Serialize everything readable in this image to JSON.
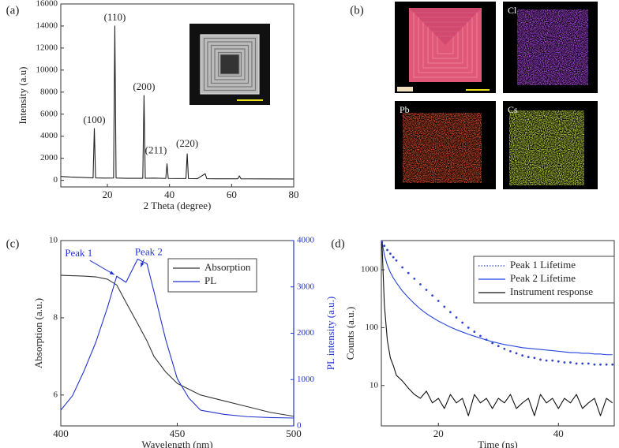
{
  "chart_data": [
    {
      "type": "line",
      "title": "(a)",
      "xlabel": "2 Theta (degree)",
      "ylabel": "Intensity (a.u)",
      "x": [
        5,
        8,
        12,
        15.4,
        15.8,
        16.2,
        19,
        22,
        22.4,
        22.8,
        26,
        31.4,
        31.8,
        32.2,
        35,
        38.8,
        39.2,
        39.6,
        43,
        45.3,
        45.7,
        46.1,
        49,
        51.5,
        52,
        55,
        62,
        62.5,
        63,
        70,
        80
      ],
      "series": [
        {
          "name": "XRD",
          "color": "#222222",
          "values": [
            350,
            300,
            260,
            220,
            4700,
            220,
            200,
            210,
            14000,
            210,
            180,
            180,
            7700,
            180,
            200,
            170,
            1500,
            170,
            160,
            160,
            2400,
            160,
            150,
            600,
            150,
            140,
            140,
            400,
            140,
            130,
            120
          ]
        }
      ],
      "annotations": [
        {
          "text": "(100)",
          "x": 15.8
        },
        {
          "text": "(110)",
          "x": 22.4
        },
        {
          "text": "(200)",
          "x": 31.8
        },
        {
          "text": "(211)",
          "x": 39.2
        },
        {
          "text": "(220)",
          "x": 45.7
        }
      ],
      "xlim": [
        5,
        80
      ],
      "xticks": [
        20,
        40,
        60,
        80
      ],
      "ylim": [
        -600,
        16000
      ],
      "yticks": [
        0,
        2000,
        4000,
        6000,
        8000,
        10000,
        12000,
        14000,
        16000
      ]
    },
    {
      "type": "image",
      "title": "(b)",
      "maps": [
        {
          "label": "Cl",
          "color": "#b84cf0"
        },
        {
          "label": "Pb",
          "color": "#e0502c"
        },
        {
          "label": "Cs",
          "color": "#c8e040"
        }
      ]
    },
    {
      "type": "line",
      "title": "(c)",
      "xlabel": "Wavelength (nm)",
      "ylabel": "Absorption (a.u.)",
      "y2label": "PL intensity (a.u.)",
      "x": [
        400,
        405,
        410,
        415,
        420,
        424,
        428,
        433,
        437,
        440,
        445,
        450,
        455,
        460,
        470,
        480,
        490,
        500
      ],
      "series": [
        {
          "name": "Absorption",
          "color": "#333333",
          "values": [
            9.1,
            9.09,
            9.08,
            9.06,
            9.0,
            8.85,
            8.4,
            7.85,
            7.4,
            7.0,
            6.6,
            6.3,
            6.15,
            6.0,
            5.85,
            5.7,
            5.55,
            5.45
          ]
        },
        {
          "name": "PL",
          "color": "#2233cc",
          "axis": "y2",
          "values": [
            340,
            650,
            1190,
            1800,
            2550,
            3230,
            3100,
            3600,
            3500,
            2900,
            1870,
            1020,
            600,
            340,
            250,
            200,
            180,
            170
          ]
        }
      ],
      "annotations": [
        {
          "text": "Peak 1",
          "x": 424
        },
        {
          "text": "Peak 2",
          "x": 433
        }
      ],
      "xlim": [
        400,
        500
      ],
      "xticks": [
        400,
        450,
        500
      ],
      "ylim": [
        5.2,
        10
      ],
      "yticks": [
        6,
        8,
        10
      ],
      "y2lim": [
        0,
        4000
      ],
      "y2ticks": [
        0,
        1000,
        2000,
        3000,
        4000
      ],
      "legend": "upper right"
    },
    {
      "type": "line",
      "title": "(d)",
      "xlabel": "Time (ns)",
      "ylabel": "Counts (a.u.)",
      "log_y": true,
      "x": [
        10.6,
        11,
        11.5,
        12,
        12.5,
        13,
        14,
        15,
        16,
        17,
        18,
        19,
        20,
        21,
        22,
        23,
        24,
        25,
        26,
        27,
        28,
        29,
        30,
        31,
        32,
        33,
        34,
        35,
        36,
        37,
        38,
        39,
        40,
        41,
        42,
        43,
        44,
        45,
        46,
        47,
        48,
        49
      ],
      "series": [
        {
          "name": "Peak 1 Lifetime",
          "color": "#3344cc",
          "line_style": "dotted",
          "values": [
            3000,
            2600,
            2200,
            1900,
            1650,
            1450,
            1100,
            880,
            700,
            560,
            450,
            360,
            290,
            230,
            185,
            150,
            122,
            100,
            85,
            72,
            62,
            54,
            48,
            43,
            39,
            36,
            33,
            31,
            30,
            28,
            27,
            27,
            26,
            25,
            25,
            24,
            24,
            24,
            23,
            23,
            23,
            23
          ]
        },
        {
          "name": "Peak 2 Lifetime",
          "color": "#2244dd",
          "values": [
            3100,
            1800,
            1200,
            900,
            720,
            600,
            430,
            330,
            260,
            210,
            175,
            150,
            130,
            115,
            102,
            92,
            84,
            77,
            71,
            66,
            61,
            57,
            54,
            51,
            49,
            47,
            45,
            44,
            43,
            42,
            41,
            40,
            39,
            38,
            37,
            37,
            36,
            36,
            35,
            35,
            34,
            34
          ]
        },
        {
          "name": "Instrument response",
          "color": "#111111",
          "values": [
            3000,
            250,
            60,
            30,
            22,
            15,
            12,
            9,
            7,
            6,
            8,
            5,
            6,
            4,
            7,
            5,
            6,
            3,
            7,
            5,
            6,
            4,
            6,
            5,
            7,
            4,
            5,
            6,
            3,
            7,
            5,
            6,
            4,
            6,
            5,
            7,
            4,
            5,
            6,
            3,
            6,
            5
          ]
        }
      ],
      "xlim": [
        10.5,
        49.3
      ],
      "xticks": [
        20,
        40
      ],
      "ylim": [
        2,
        3200
      ],
      "yticks": [
        10,
        100,
        1000
      ],
      "legend": "upper right"
    }
  ]
}
